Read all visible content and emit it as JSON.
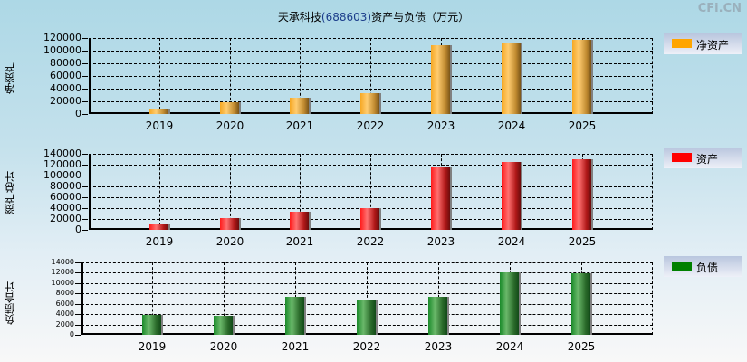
{
  "title": {
    "company": "天承科技",
    "code": "(688603)",
    "suffix": "资产与负债（万元）"
  },
  "watermark": "CFi.CN",
  "chart_data": [
    {
      "type": "bar",
      "title": "天承科技(688603)资产与负债（万元）",
      "ylabel": "净资产",
      "xlabel": "",
      "categories": [
        "2019",
        "2020",
        "2021",
        "2022",
        "2023",
        "2024",
        "2025"
      ],
      "series": [
        {
          "name": "净资产",
          "color": "#ffa500",
          "values": [
            8500,
            18500,
            25700,
            32900,
            108600,
            111400,
            117000
          ]
        }
      ],
      "ylim": [
        0,
        120000
      ],
      "yticks": [
        "120000",
        "100000",
        "80000",
        "60000",
        "40000",
        "20000",
        "0"
      ],
      "grid": true,
      "legend_position": "right"
    },
    {
      "type": "bar",
      "ylabel": "资产总计",
      "xlabel": "",
      "categories": [
        "2019",
        "2020",
        "2021",
        "2022",
        "2023",
        "2024",
        "2025"
      ],
      "series": [
        {
          "name": "资产",
          "color": "#ff0000",
          "values": [
            11700,
            21700,
            33300,
            40000,
            116700,
            125000,
            130000
          ]
        }
      ],
      "ylim": [
        0,
        140000
      ],
      "yticks": [
        "140000",
        "120000",
        "100000",
        "80000",
        "60000",
        "40000",
        "20000",
        "0"
      ],
      "grid": true,
      "legend_position": "right"
    },
    {
      "type": "bar",
      "ylabel": "负债合计",
      "xlabel": "",
      "categories": [
        "2019",
        "2020",
        "2021",
        "2022",
        "2023",
        "2024",
        "2025"
      ],
      "series": [
        {
          "name": "负债",
          "color": "#008000",
          "values": [
            3900,
            3700,
            7350,
            6800,
            7350,
            12100,
            11900
          ]
        }
      ],
      "ylim": [
        0,
        14000
      ],
      "yticks": [
        "14000",
        "12000",
        "10000",
        "8000",
        "6000",
        "4000",
        "2000",
        "0"
      ],
      "grid": true,
      "legend_position": "right"
    }
  ]
}
